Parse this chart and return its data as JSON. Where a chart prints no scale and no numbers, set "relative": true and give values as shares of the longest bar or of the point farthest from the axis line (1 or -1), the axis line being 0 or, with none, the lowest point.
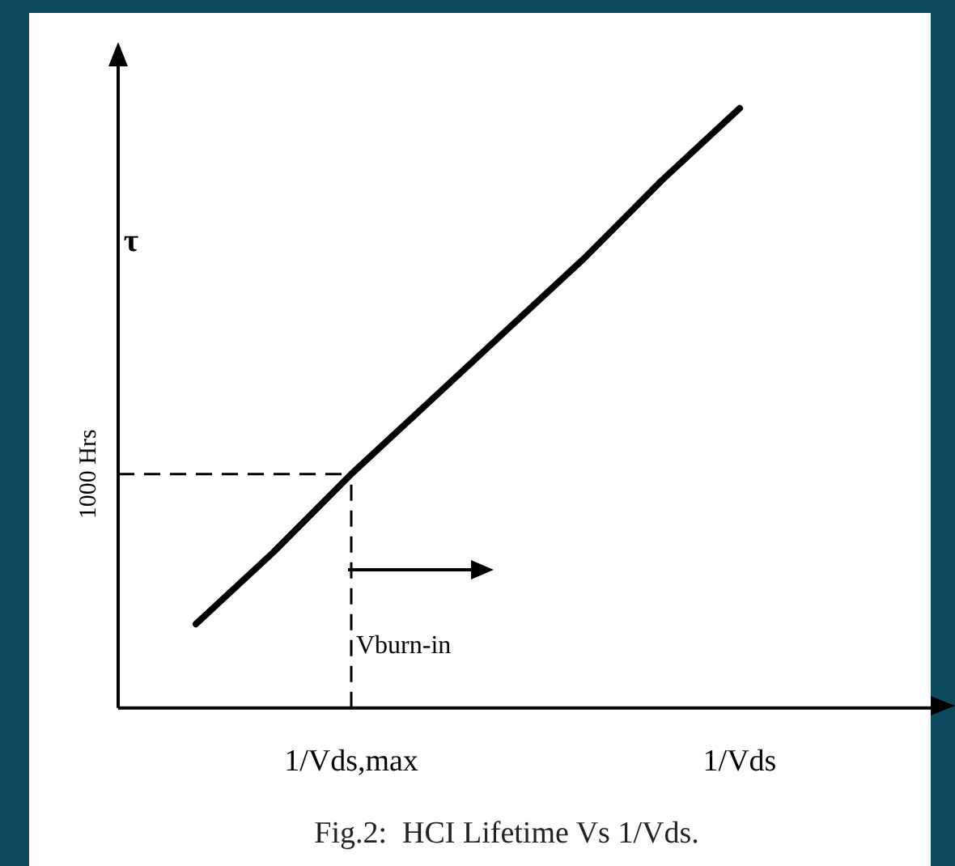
{
  "chart_data": {
    "type": "line",
    "relative": true,
    "title": "Fig.2:  HCI Lifetime Vs 1/Vds.",
    "ylabel": "τ",
    "categories": [
      null,
      null,
      null,
      "1/Vds,max",
      null,
      null,
      null,
      null,
      "1/Vds",
      null,
      null
    ],
    "series": [
      {
        "color": "#000000",
        "values": [
          null,
          0.14,
          0.26,
          0.39,
          0.51,
          0.63,
          0.75,
          0.88,
          1,
          null,
          null
        ]
      }
    ],
    "ref_lines": [
      {
        "axis": "x",
        "value": "1/Vds,max",
        "line_style": "dashed",
        "color": "#000000"
      },
      {
        "axis": "y",
        "value": 0.39,
        "label": "1000 Hrs",
        "line_style": "dashed",
        "color": "#000000"
      }
    ],
    "annotations": [
      "Vburn-in"
    ],
    "marker": "none",
    "line_style": "solid",
    "legend": false,
    "grid": false
  }
}
